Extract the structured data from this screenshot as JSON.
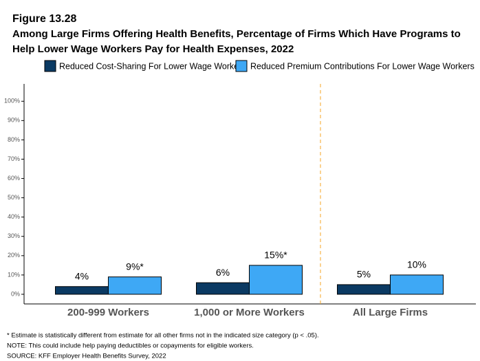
{
  "chart_data": {
    "type": "bar",
    "title": "Figure 13.28",
    "subtitle": [
      "Among Large Firms Offering Health Benefits, Percentage of Firms Which Have Programs to",
      "Help Lower Wage Workers Pay for Health Expenses, 2022"
    ],
    "categories": [
      "200-999 Workers",
      "1,000 or More Workers",
      "All Large Firms"
    ],
    "series": [
      {
        "name": "Reduced Cost-Sharing For Lower Wage Workers",
        "color": "#0b3a63",
        "values": [
          4,
          6,
          5
        ],
        "value_labels": [
          "4%",
          "6%",
          "5%"
        ]
      },
      {
        "name": "Reduced Premium Contributions For Lower Wage Workers",
        "color": "#3ea8f5",
        "values": [
          9,
          15,
          10
        ],
        "value_labels": [
          "9%*",
          "15%*",
          "10%"
        ]
      }
    ],
    "ylim": [
      -5,
      109
    ],
    "yticks": [
      {
        "value": 0,
        "label": "0%"
      },
      {
        "value": 10,
        "label": "10%"
      },
      {
        "value": 20,
        "label": "20%"
      },
      {
        "value": 30,
        "label": "30%"
      },
      {
        "value": 40,
        "label": "40%"
      },
      {
        "value": 50,
        "label": "50%"
      },
      {
        "value": 60,
        "label": "60%"
      },
      {
        "value": 70,
        "label": "70%"
      },
      {
        "value": 80,
        "label": "80%"
      },
      {
        "value": 90,
        "label": "90%"
      },
      {
        "value": 100,
        "label": "100%"
      }
    ],
    "grid": false,
    "legend": "top",
    "notes": [
      "* Estimate is statistically different from estimate for all other firms not in the indicated size category (p < .05).",
      "NOTE: This could include help paying deductibles or copayments for eligible workers.",
      "SOURCE: KFF Employer Health Benefits Survey, 2022"
    ]
  }
}
